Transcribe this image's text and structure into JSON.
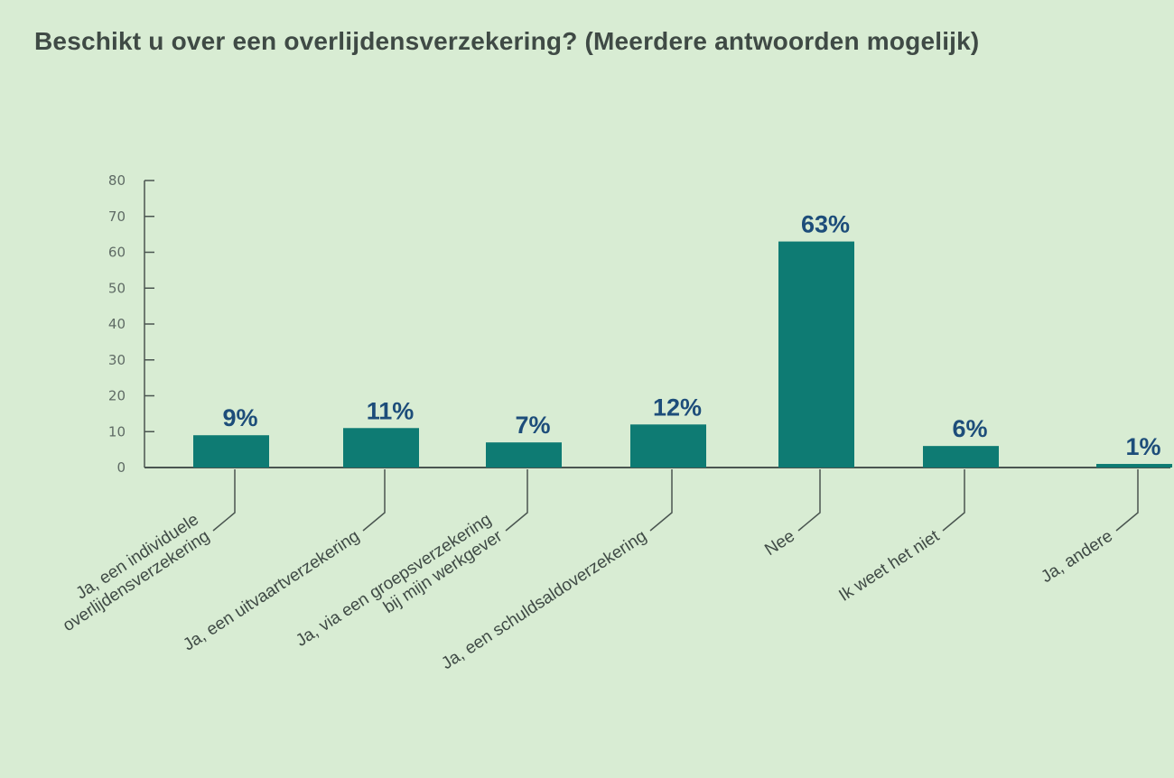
{
  "chart_data": {
    "type": "bar",
    "title": "Beschikt u over een overlijdensverzekering? (Meerdere antwoorden mogelijk)",
    "xlabel": "",
    "ylabel": "",
    "ylim": [
      0,
      80
    ],
    "yticks": [
      0,
      10,
      20,
      30,
      40,
      50,
      60,
      70,
      80
    ],
    "grid": false,
    "categories": [
      [
        "Ja, een individuele",
        "overlijdensverzekering"
      ],
      [
        "Ja, een uitvaartverzekering"
      ],
      [
        "Ja, via een groepsverzekering",
        "bij mijn werkgever"
      ],
      [
        "Ja, een schuldsaldoverzekering"
      ],
      [
        "Nee"
      ],
      [
        "Ik weet het niet"
      ],
      [
        "Ja, andere"
      ]
    ],
    "values": [
      9,
      11,
      7,
      12,
      63,
      6,
      1
    ],
    "data_labels": [
      "9%",
      "11%",
      "7%",
      "12%",
      "63%",
      "6%",
      "1%"
    ],
    "colors": {
      "bar": "#0e7b73",
      "axis": "#4a5550",
      "data_label": "#1d4d7a"
    }
  }
}
